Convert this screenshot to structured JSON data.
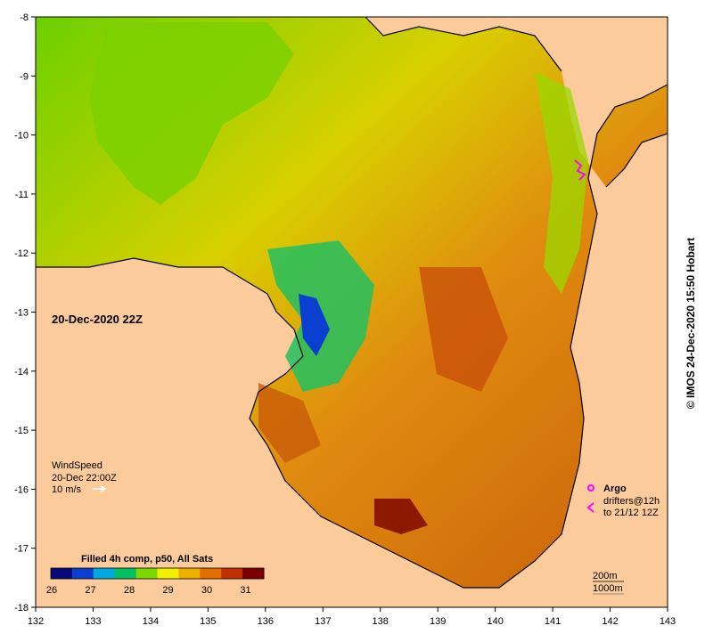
{
  "map": {
    "lon_ticks": [
      "132",
      "133",
      "134",
      "135",
      "136",
      "137",
      "138",
      "139",
      "140",
      "141",
      "142",
      "143"
    ],
    "lat_ticks": [
      "-8",
      "-9",
      "-10",
      "-11",
      "-12",
      "-13",
      "-14",
      "-15",
      "-16",
      "-17",
      "-18"
    ],
    "timestamp_label": "20-Dec-2020 22Z",
    "wind_block": {
      "title": "WindSpeed",
      "time": "20-Dec 22:00Z",
      "scale": "10 m/s"
    },
    "legend": {
      "title": "Filled 4h comp, p50, All Sats",
      "ticks": [
        "26",
        "27",
        "28",
        "29",
        "30",
        "31"
      ],
      "colors": [
        "#08087a",
        "#0a3fd0",
        "#00a8e0",
        "#00c060",
        "#7cd800",
        "#f0f000",
        "#f0b000",
        "#e07000",
        "#c03000",
        "#7a0000"
      ]
    },
    "argo_block": {
      "argo_label": "Argo",
      "drifters_label": "drifters@12h",
      "drifters_until": "to 21/12 12Z",
      "marker_color": "#ff00ff"
    },
    "depth_block": {
      "contour_200": "200m",
      "contour_1000": "1000m"
    },
    "credit": "© IMOS 24-Dec-2020 15:50 Hobart",
    "colors": {
      "land": "#fbcb9c",
      "nodata": "#ffffff",
      "warm": "#d9770f",
      "hot": "#8b1a00",
      "mid": "#e8a020",
      "cool": "#6cd000",
      "cold": "#0a4fd0"
    }
  }
}
